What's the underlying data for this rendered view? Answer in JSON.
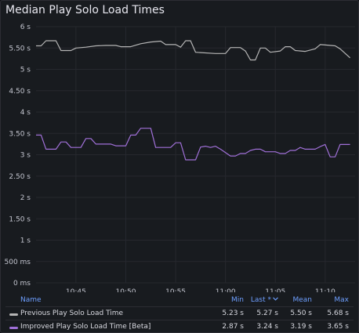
{
  "panel": {
    "title": "Median Play Solo Load Times"
  },
  "legend": {
    "headers": {
      "name": "Name",
      "min": "Min",
      "last": "Last *",
      "mean": "Mean",
      "max": "Max",
      "sort_icon": "chevron-down-icon"
    },
    "rows": [
      {
        "name": "Previous Play Solo Load Time",
        "color": "#b5b5b5",
        "min": "5.23 s",
        "last": "5.27 s",
        "mean": "5.50 s",
        "max": "5.68 s"
      },
      {
        "name": "Improved Play Solo Load Time [Beta]",
        "color": "#a070d8",
        "min": "2.87 s",
        "last": "3.24 s",
        "mean": "3.19 s",
        "max": "3.65 s"
      }
    ]
  },
  "chart_data": {
    "type": "line",
    "title": "Median Play Solo Load Times",
    "grid": true,
    "legend_position": "bottom",
    "xlim": [
      "10:41",
      "11:13"
    ],
    "ylim": [
      0,
      6
    ],
    "x_ticks": [
      "10:45",
      "10:50",
      "10:55",
      "11:00",
      "11:05",
      "11:10"
    ],
    "y_ticks": [
      {
        "value": 0,
        "label": "0 ms"
      },
      {
        "value": 0.5,
        "label": "500 ms"
      },
      {
        "value": 1,
        "label": "1 s"
      },
      {
        "value": 1.5,
        "label": "1.50 s"
      },
      {
        "value": 2,
        "label": "2 s"
      },
      {
        "value": 2.5,
        "label": "2.50 s"
      },
      {
        "value": 3,
        "label": "3 s"
      },
      {
        "value": 3.5,
        "label": "3.50 s"
      },
      {
        "value": 4,
        "label": "4 s"
      },
      {
        "value": 4.5,
        "label": "4.50 s"
      },
      {
        "value": 5,
        "label": "5 s"
      },
      {
        "value": 5.5,
        "label": "5.50 s"
      },
      {
        "value": 6,
        "label": "6 s"
      }
    ],
    "series": [
      {
        "name": "Previous Play Solo Load Time",
        "color": "#b5b5b5",
        "points": [
          [
            "10:41:00",
            5.55
          ],
          [
            "10:41:30",
            5.55
          ],
          [
            "10:42:00",
            5.67
          ],
          [
            "10:43:00",
            5.67
          ],
          [
            "10:43:30",
            5.44
          ],
          [
            "10:44:30",
            5.44
          ],
          [
            "10:45:00",
            5.5
          ],
          [
            "10:46:00",
            5.52
          ],
          [
            "10:47:00",
            5.55
          ],
          [
            "10:48:00",
            5.56
          ],
          [
            "10:49:00",
            5.56
          ],
          [
            "10:49:30",
            5.53
          ],
          [
            "10:50:30",
            5.53
          ],
          [
            "10:51:30",
            5.6
          ],
          [
            "10:52:30",
            5.64
          ],
          [
            "10:53:30",
            5.66
          ],
          [
            "10:54:00",
            5.58
          ],
          [
            "10:55:00",
            5.58
          ],
          [
            "10:55:30",
            5.52
          ],
          [
            "10:56:00",
            5.67
          ],
          [
            "10:56:30",
            5.67
          ],
          [
            "10:57:00",
            5.4
          ],
          [
            "10:59:00",
            5.37
          ],
          [
            "11:00:00",
            5.37
          ],
          [
            "11:00:30",
            5.51
          ],
          [
            "11:01:30",
            5.51
          ],
          [
            "11:02:00",
            5.43
          ],
          [
            "11:02:30",
            5.22
          ],
          [
            "11:03:00",
            5.22
          ],
          [
            "11:03:30",
            5.5
          ],
          [
            "11:04:00",
            5.5
          ],
          [
            "11:04:30",
            5.4
          ],
          [
            "11:05:30",
            5.43
          ],
          [
            "11:06:00",
            5.53
          ],
          [
            "11:06:30",
            5.53
          ],
          [
            "11:07:00",
            5.44
          ],
          [
            "11:08:00",
            5.42
          ],
          [
            "11:09:00",
            5.48
          ],
          [
            "11:09:30",
            5.58
          ],
          [
            "11:10:00",
            5.57
          ],
          [
            "11:11:00",
            5.55
          ],
          [
            "11:11:30",
            5.48
          ],
          [
            "11:12:30",
            5.27
          ]
        ]
      },
      {
        "name": "Improved Play Solo Load Time [Beta]",
        "color": "#a070d8",
        "points": [
          [
            "10:41:00",
            3.46
          ],
          [
            "10:41:30",
            3.46
          ],
          [
            "10:42:00",
            3.13
          ],
          [
            "10:43:00",
            3.13
          ],
          [
            "10:43:30",
            3.3
          ],
          [
            "10:44:00",
            3.3
          ],
          [
            "10:44:30",
            3.17
          ],
          [
            "10:45:30",
            3.17
          ],
          [
            "10:46:00",
            3.38
          ],
          [
            "10:46:30",
            3.38
          ],
          [
            "10:47:00",
            3.25
          ],
          [
            "10:48:30",
            3.25
          ],
          [
            "10:49:00",
            3.21
          ],
          [
            "10:50:00",
            3.21
          ],
          [
            "10:50:30",
            3.46
          ],
          [
            "10:51:00",
            3.46
          ],
          [
            "10:51:30",
            3.62
          ],
          [
            "10:52:30",
            3.62
          ],
          [
            "10:53:00",
            3.17
          ],
          [
            "10:54:30",
            3.17
          ],
          [
            "10:55:00",
            3.28
          ],
          [
            "10:55:30",
            3.28
          ],
          [
            "10:56:00",
            2.88
          ],
          [
            "10:57:00",
            2.88
          ],
          [
            "10:57:30",
            3.18
          ],
          [
            "10:58:00",
            3.2
          ],
          [
            "10:58:30",
            3.17
          ],
          [
            "10:59:00",
            3.2
          ],
          [
            "10:59:30",
            3.13
          ],
          [
            "11:00:00",
            3.05
          ],
          [
            "11:00:30",
            2.97
          ],
          [
            "11:01:00",
            2.97
          ],
          [
            "11:01:30",
            3.03
          ],
          [
            "11:02:00",
            3.03
          ],
          [
            "11:02:30",
            3.1
          ],
          [
            "11:03:00",
            3.13
          ],
          [
            "11:03:30",
            3.13
          ],
          [
            "11:04:00",
            3.07
          ],
          [
            "11:05:00",
            3.07
          ],
          [
            "11:05:30",
            3.03
          ],
          [
            "11:06:00",
            3.03
          ],
          [
            "11:06:30",
            3.1
          ],
          [
            "11:07:00",
            3.1
          ],
          [
            "11:07:30",
            3.17
          ],
          [
            "11:08:00",
            3.13
          ],
          [
            "11:09:00",
            3.13
          ],
          [
            "11:09:30",
            3.19
          ],
          [
            "11:10:00",
            3.24
          ],
          [
            "11:10:30",
            2.95
          ],
          [
            "11:11:00",
            2.95
          ],
          [
            "11:11:30",
            3.24
          ],
          [
            "11:12:30",
            3.24
          ]
        ]
      }
    ]
  }
}
